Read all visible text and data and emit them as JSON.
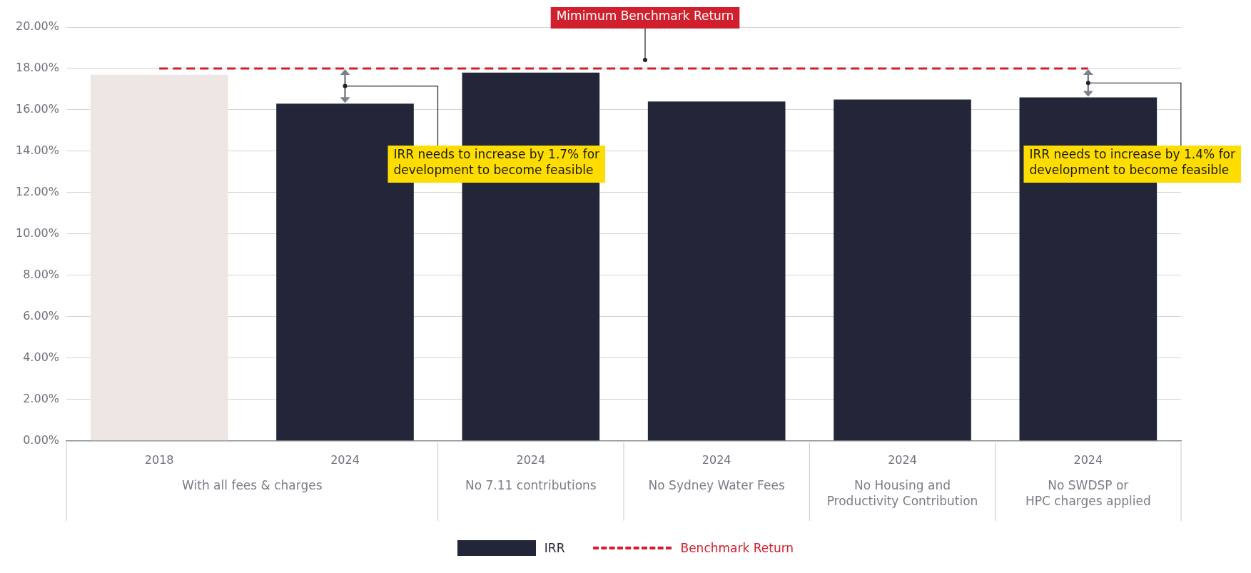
{
  "chart_data": {
    "type": "bar",
    "categories": [
      "2018",
      "2024",
      "2024",
      "2024",
      "2024",
      "2024"
    ],
    "series": [
      {
        "name": "IRR",
        "color": "#232639",
        "colors": [
          "#ede6e2",
          "#232639",
          "#232639",
          "#232639",
          "#232639",
          "#232639"
        ],
        "values": [
          17.7,
          16.3,
          17.8,
          16.4,
          16.5,
          16.6
        ]
      },
      {
        "name": "Benchmark Return",
        "type": "line",
        "color": "#d0202e",
        "line_style": "dashed",
        "marker": "none",
        "values": [
          18,
          18,
          18,
          18,
          18,
          18
        ]
      }
    ],
    "ylim": [
      0,
      20
    ],
    "yticks": [
      {
        "value": 0,
        "label": "0.00%"
      },
      {
        "value": 2,
        "label": "2.00%"
      },
      {
        "value": 4,
        "label": "4.00%"
      },
      {
        "value": 6,
        "label": "6.00%"
      },
      {
        "value": 8,
        "label": "8.00%"
      },
      {
        "value": 10,
        "label": "10.00%"
      },
      {
        "value": 12,
        "label": "12.00%"
      },
      {
        "value": 14,
        "label": "14.00%"
      },
      {
        "value": 16,
        "label": "16.00%"
      },
      {
        "value": 18,
        "label": "18.00%"
      },
      {
        "value": 20,
        "label": "20.00%"
      }
    ],
    "grid": "y",
    "legend": "bottom",
    "annotations": [
      "Mimimum Benchmark Return",
      "IRR needs to increase by 1.7% for\ndevelopment to become feasible",
      "IRR needs to increase by 1.4% for\ndevelopment to become feasible",
      "With all fees & charges",
      "No 7.11 contributions",
      "No Sydney Water Fees",
      "No Housing and\nProductivity Contribution",
      "No SWDSP or\nHPC charges applied"
    ]
  }
}
